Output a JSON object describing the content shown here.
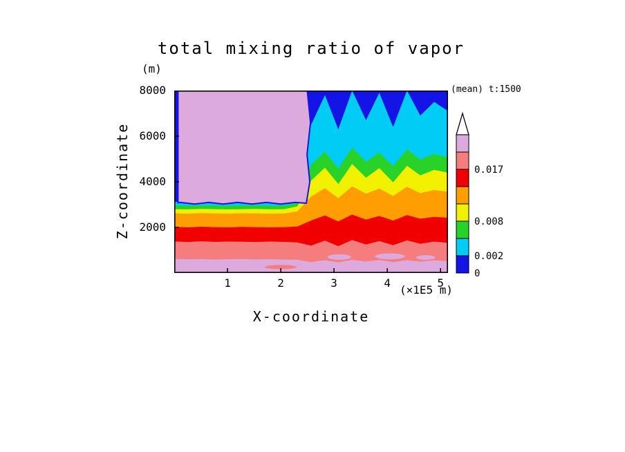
{
  "chart_data": {
    "type": "filled_contour",
    "title": "total mixing ratio of vapor",
    "y_unit": "(m)",
    "x_unit": "(×1E5 m)",
    "xlabel": "X-coordinate",
    "ylabel": "Z-coordinate",
    "annotation": "(mean) t:1500",
    "x_range": [
      0,
      5.14
    ],
    "y_range": [
      0,
      8000
    ],
    "x_ticks": [
      1,
      2,
      3,
      4,
      5
    ],
    "y_ticks": [
      2000,
      4000,
      6000,
      8000
    ],
    "levels": [
      0,
      0.002,
      0.005,
      0.008,
      0.011,
      0.014,
      0.017,
      0.02
    ],
    "band_colors_low_to_high": [
      "#1414e6",
      "#00ccf5",
      "#28d228",
      "#f0f000",
      "#ff9e00",
      "#f00000",
      "#f57d7d",
      "#dcaadc"
    ],
    "colorbar_labels": [
      "0.017",
      "0.008",
      "0.002",
      "0"
    ],
    "x_samples": [
      0,
      0.26,
      0.51,
      0.77,
      1.03,
      1.28,
      1.54,
      1.8,
      2.06,
      2.31,
      2.57,
      2.83,
      3.08,
      3.34,
      3.6,
      3.85,
      4.11,
      4.37,
      4.62,
      4.88,
      5.14
    ],
    "band_top_heights_m": {
      "plum_top": [
        620,
        600,
        615,
        590,
        605,
        610,
        595,
        605,
        590,
        580,
        480,
        560,
        470,
        580,
        500,
        570,
        480,
        560,
        500,
        550,
        520
      ],
      "salmon_top": [
        1380,
        1360,
        1390,
        1365,
        1380,
        1370,
        1360,
        1380,
        1365,
        1340,
        1200,
        1420,
        1180,
        1450,
        1250,
        1400,
        1220,
        1430,
        1280,
        1380,
        1320
      ],
      "red_top": [
        2020,
        2000,
        2030,
        2010,
        2000,
        2020,
        2010,
        2000,
        2010,
        2040,
        2300,
        2520,
        2260,
        2560,
        2340,
        2500,
        2300,
        2540,
        2380,
        2460,
        2420
      ],
      "orange_top": [
        2620,
        2600,
        2630,
        2610,
        2600,
        2620,
        2610,
        2600,
        2610,
        2700,
        3350,
        3720,
        3280,
        3800,
        3480,
        3700,
        3380,
        3780,
        3500,
        3640,
        3560
      ],
      "yellow_top": [
        2800,
        2790,
        2810,
        2800,
        2790,
        2800,
        2810,
        2790,
        2800,
        2920,
        4050,
        4620,
        3900,
        4780,
        4180,
        4600,
        3980,
        4700,
        4280,
        4520,
        4400
      ],
      "green_top": [
        2960,
        2950,
        2970,
        2960,
        2950,
        2960,
        2970,
        2950,
        2960,
        3060,
        4750,
        5320,
        4580,
        5500,
        4880,
        5280,
        4680,
        5420,
        4980,
        5220,
        5080
      ],
      "cyan_top": [
        3120,
        3100,
        3130,
        3110,
        3100,
        3120,
        3110,
        3100,
        3110,
        3200,
        6500,
        7800,
        6300,
        8000,
        6700,
        7900,
        6400,
        8000,
        6900,
        7500,
        7100
      ]
    },
    "cloud_block": {
      "x0": 0.07,
      "x1": 2.52,
      "z0": 3060,
      "z1": 8000
    },
    "blobs": [
      {
        "x": 3.1,
        "z": 700,
        "rx": 0.22,
        "rz": 120,
        "level": 7
      },
      {
        "x": 4.05,
        "z": 730,
        "rx": 0.28,
        "rz": 130,
        "level": 7
      },
      {
        "x": 4.72,
        "z": 680,
        "rx": 0.18,
        "rz": 100,
        "level": 7
      },
      {
        "x": 2.0,
        "z": 260,
        "rx": 0.3,
        "rz": 90,
        "level": 6
      }
    ]
  }
}
